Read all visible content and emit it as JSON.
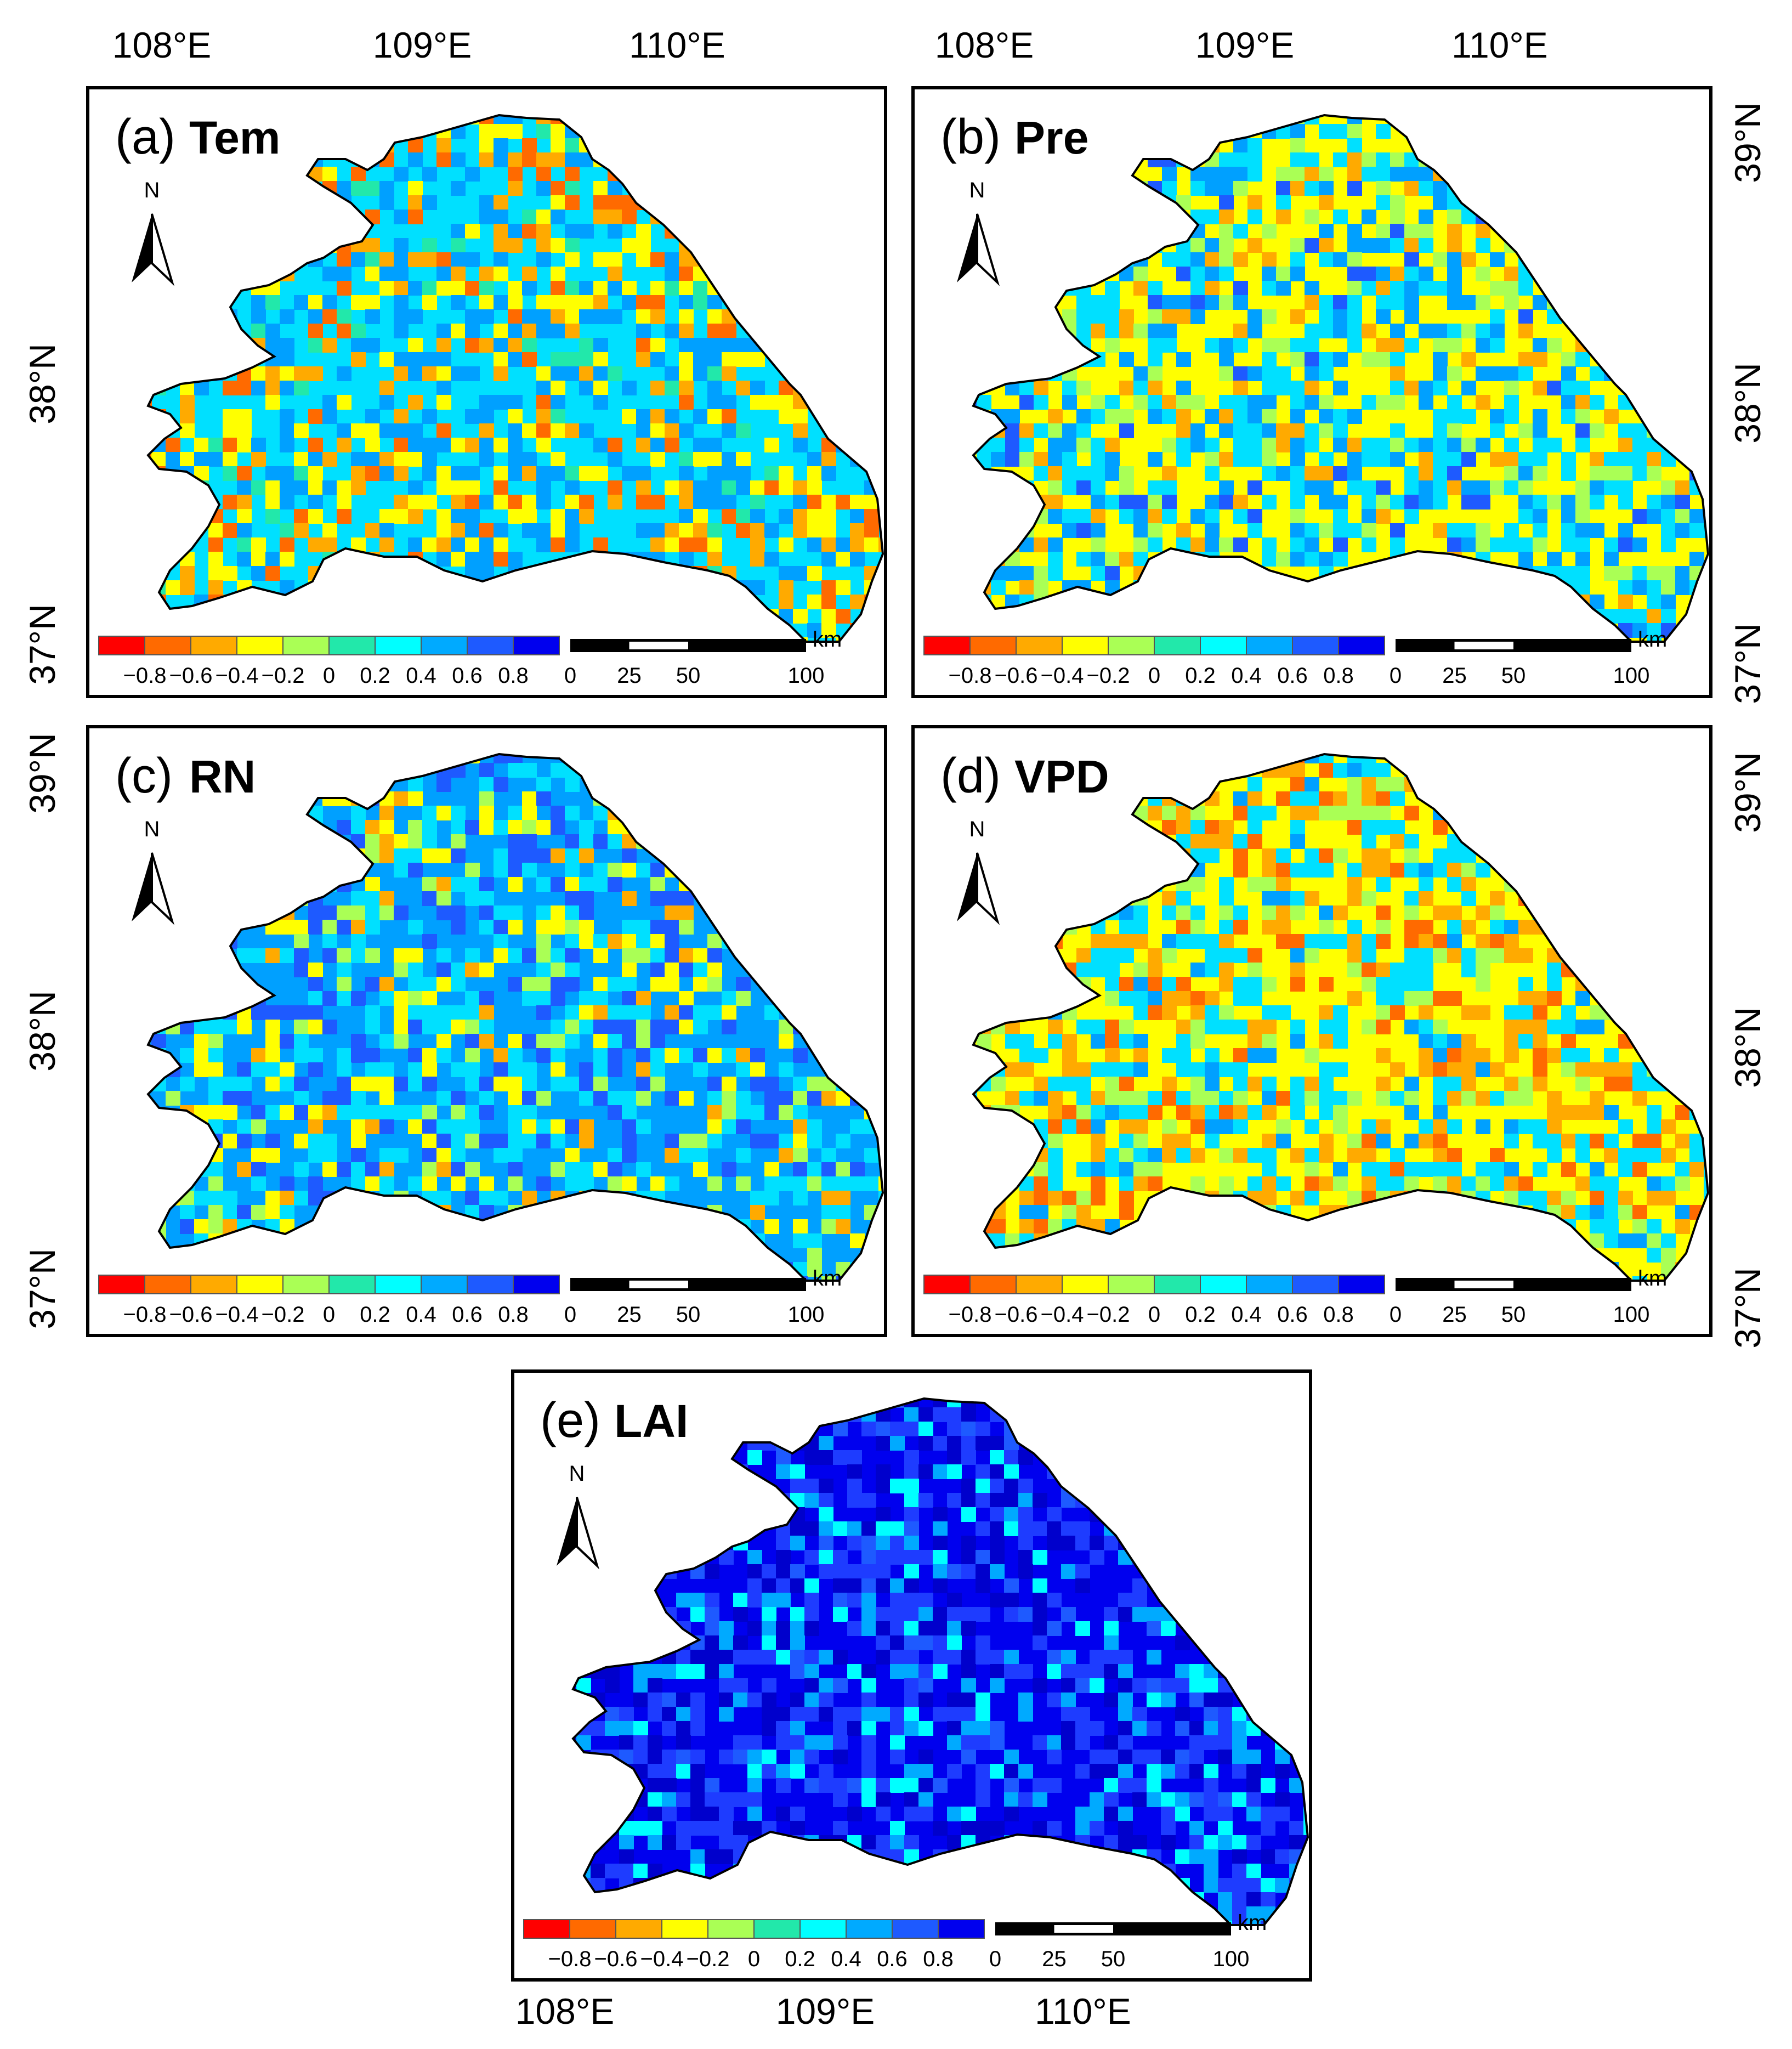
{
  "figure": {
    "lon_ticks": [
      "108°E",
      "109°E",
      "110°E"
    ],
    "lat_ticks": [
      "37°N",
      "38°N",
      "39°N"
    ],
    "north_label": "N",
    "legend": {
      "colors": [
        "#ff0000",
        "#ff6a00",
        "#ffaa00",
        "#ffff00",
        "#aaff55",
        "#22e8aa",
        "#00ffff",
        "#00aaff",
        "#1e5aff",
        "#0000ee"
      ],
      "tick_labels": [
        "−0.8",
        "−0.6",
        "−0.4",
        "−0.2",
        "0",
        "0.2",
        "0.4",
        "0.6",
        "0.8"
      ]
    },
    "scalebar": {
      "unit": "km",
      "labels": [
        "0",
        "25",
        "50",
        "100"
      ]
    },
    "panels": [
      {
        "letter": "(a)",
        "variable": "Tem",
        "palette": [
          "#00e0ff",
          "#00a0ff",
          "#ffff00",
          "#ffaa00",
          "#ff6a00",
          "#22e8aa"
        ]
      },
      {
        "letter": "(b)",
        "variable": "Pre",
        "palette": [
          "#ffff00",
          "#00e0ff",
          "#00a0ff",
          "#aaff55",
          "#ffaa00",
          "#1e5aff"
        ]
      },
      {
        "letter": "(c)",
        "variable": "RN",
        "palette": [
          "#00a0ff",
          "#00e0ff",
          "#1e5aff",
          "#ffff00",
          "#aaff55",
          "#ffaa00"
        ]
      },
      {
        "letter": "(d)",
        "variable": "VPD",
        "palette": [
          "#ffff00",
          "#00e0ff",
          "#ffaa00",
          "#aaff55",
          "#ff6a00",
          "#00a0ff"
        ]
      },
      {
        "letter": "(e)",
        "variable": "LAI",
        "palette": [
          "#0000ee",
          "#1e3cff",
          "#0000cc",
          "#00aaff",
          "#00ffff",
          "#1e5aff"
        ]
      }
    ]
  }
}
